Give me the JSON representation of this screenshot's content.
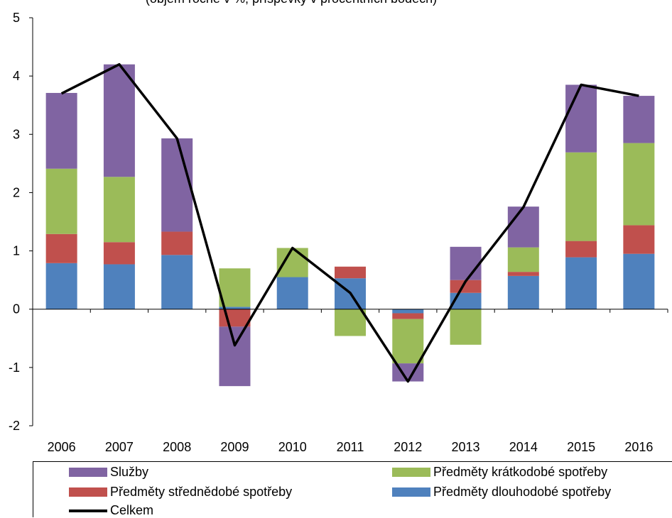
{
  "chart_data": {
    "type": "bar",
    "stacked": true,
    "title": "(objem ročně v %; příspěvky v procentních bodech)",
    "categories": [
      "2006",
      "2007",
      "2008",
      "2009",
      "2010",
      "2011",
      "2012",
      "2013",
      "2014",
      "2015",
      "2016"
    ],
    "ylim": [
      -2,
      5
    ],
    "yticks": [
      "-2",
      "-1",
      "0",
      "1",
      "2",
      "3",
      "4",
      "5"
    ],
    "legend_position": "bottom",
    "series": [
      {
        "name": "Předměty dlouhodobé spotřeby",
        "color": "#4F81BD",
        "values": [
          0.79,
          0.77,
          0.93,
          0.04,
          0.55,
          0.53,
          -0.07,
          0.28,
          0.57,
          0.89,
          0.95
        ]
      },
      {
        "name": "Předměty střednědobé spotřeby",
        "color": "#C0504D",
        "values": [
          0.5,
          0.38,
          0.4,
          -0.3,
          0.0,
          0.2,
          -0.1,
          0.22,
          0.07,
          0.28,
          0.49
        ]
      },
      {
        "name": "Předměty krátkodobé spotřeby",
        "color": "#9BBB59",
        "values": [
          1.12,
          1.12,
          0.0,
          0.66,
          0.5,
          -0.46,
          -0.76,
          -0.61,
          0.42,
          1.52,
          1.41
        ]
      },
      {
        "name": "Služby",
        "color": "#8064A2",
        "values": [
          1.3,
          1.93,
          1.6,
          -1.02,
          0.0,
          0.0,
          -0.31,
          0.57,
          0.7,
          1.16,
          0.81
        ]
      }
    ],
    "line": {
      "name": "Celkem",
      "color": "#000000",
      "values": [
        3.7,
        4.2,
        2.93,
        -0.62,
        1.05,
        0.28,
        -1.24,
        0.48,
        1.75,
        3.85,
        3.66
      ]
    }
  },
  "legend": {
    "sluzby": "Služby",
    "kratkodobe": "Předměty krátkodobé spotřeby",
    "strednedobe": "Předměty střednědobé spotřeby",
    "dlouhodobe": "Předměty dlouhodobé spotřeby",
    "celkem": "Celkem"
  }
}
